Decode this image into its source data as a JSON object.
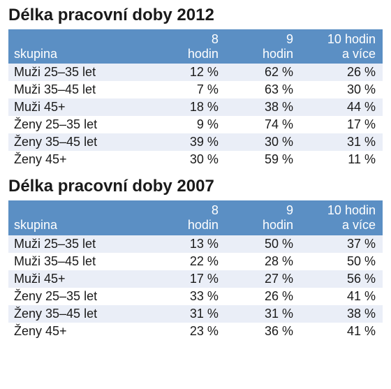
{
  "colors": {
    "header_bg": "#5b8fc4",
    "header_text": "#ffffff",
    "row_odd_bg": "#eaeef7",
    "row_even_bg": "#ffffff",
    "title_color": "#1a1a1a",
    "cell_text": "#1a1a1a"
  },
  "typography": {
    "title_fontsize": 24,
    "title_weight": "bold",
    "cell_fontsize": 18,
    "font_family": "Arial"
  },
  "tables": [
    {
      "title": "Délka pracovní doby 2012",
      "columns": [
        "skupina",
        "8 hodin",
        "9 hodin",
        "10 hodin a více"
      ],
      "header_lines": [
        [
          "skupina"
        ],
        [
          "8",
          "hodin"
        ],
        [
          "9",
          "hodin"
        ],
        [
          "10 hodin",
          "a více"
        ]
      ],
      "rows": [
        [
          "Muži 25–35 let",
          "12 %",
          "62 %",
          "26 %"
        ],
        [
          "Muži 35–45 let",
          "7 %",
          "63 %",
          "30 %"
        ],
        [
          "Muži 45+",
          "18 %",
          "38 %",
          "44 %"
        ],
        [
          "Ženy 25–35 let",
          "9 %",
          "74 %",
          "17 %"
        ],
        [
          "Ženy 35–45 let",
          "39 %",
          "30 %",
          "31 %"
        ],
        [
          "Ženy 45+",
          "30 %",
          "59 %",
          "11 %"
        ]
      ]
    },
    {
      "title": "Délka pracovní doby 2007",
      "columns": [
        "skupina",
        "8 hodin",
        "9 hodin",
        "10 hodin a více"
      ],
      "header_lines": [
        [
          "skupina"
        ],
        [
          "8",
          "hodin"
        ],
        [
          "9",
          "hodin"
        ],
        [
          "10 hodin",
          "a více"
        ]
      ],
      "rows": [
        [
          "Muži 25–35 let",
          "13 %",
          "50 %",
          "37 %"
        ],
        [
          "Muži 35–45 let",
          "22 %",
          "28 %",
          "50 %"
        ],
        [
          "Muži 45+",
          "17 %",
          "27 %",
          "56 %"
        ],
        [
          "Ženy 25–35 let",
          "33 %",
          "26 %",
          "41 %"
        ],
        [
          "Ženy 35–45 let",
          "31 %",
          "31 %",
          "38 %"
        ],
        [
          "Ženy 45+",
          "23 %",
          "36 %",
          "41 %"
        ]
      ]
    }
  ]
}
